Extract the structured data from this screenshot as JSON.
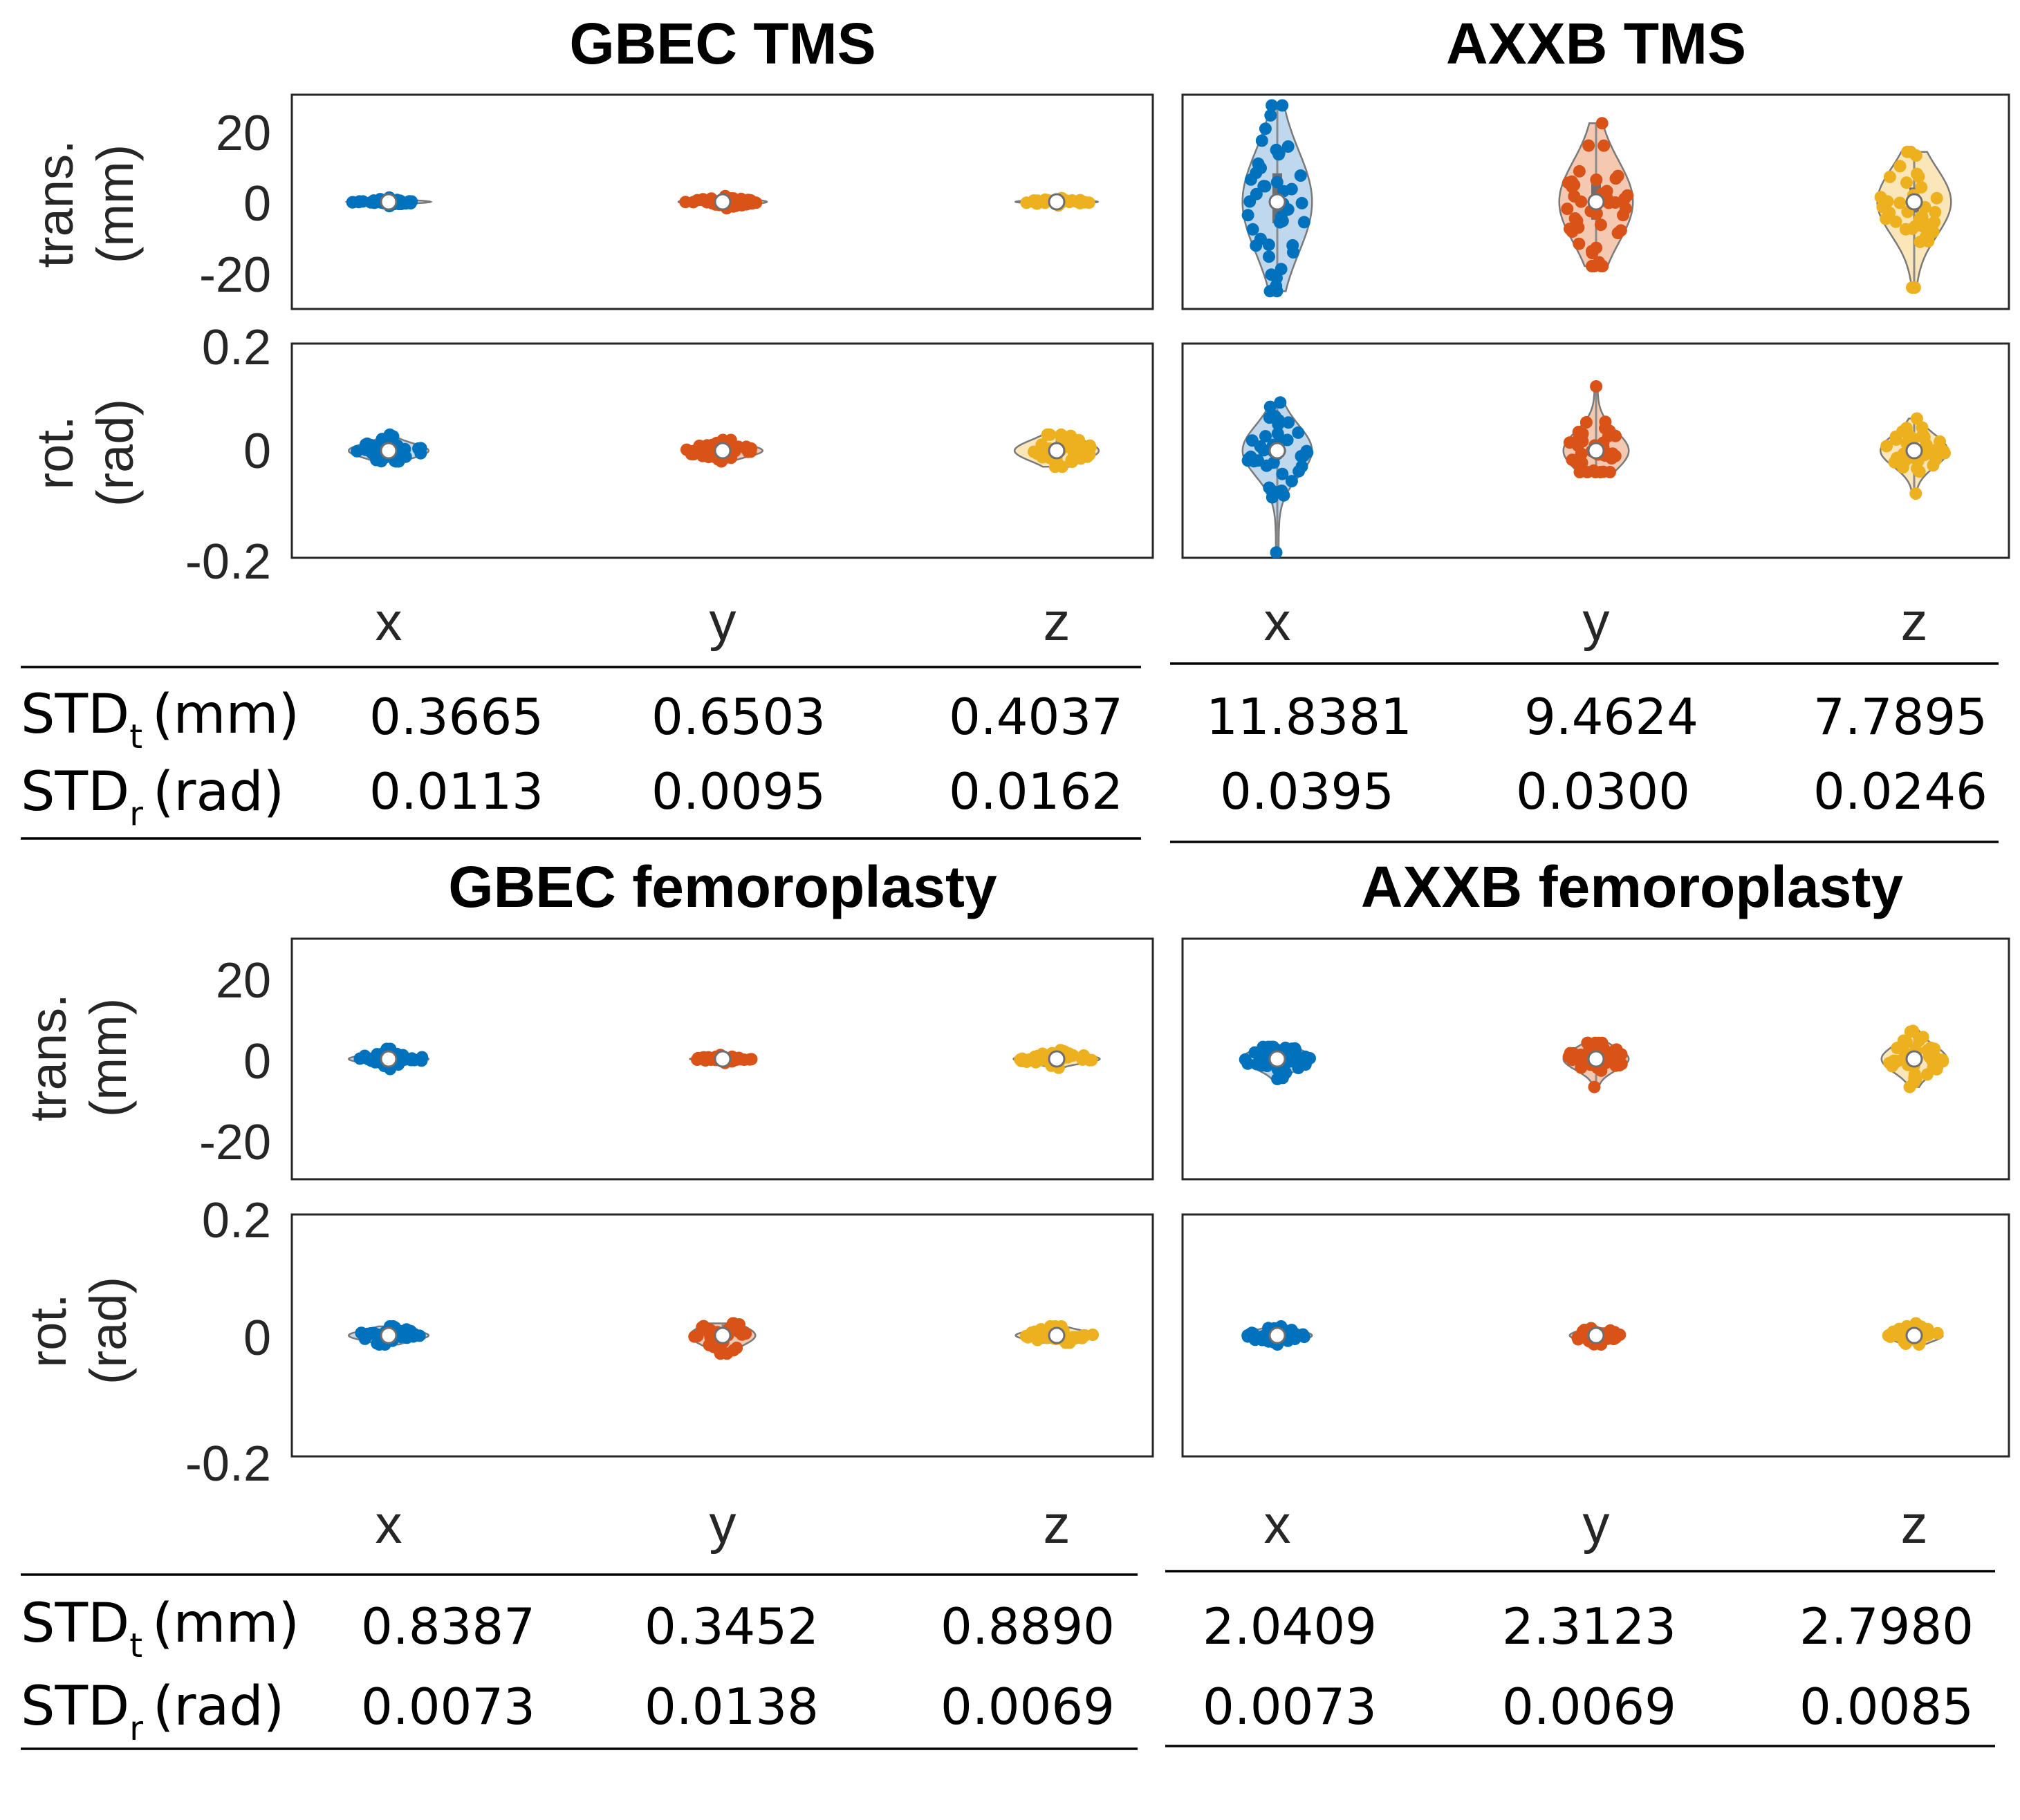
{
  "colors": {
    "x": "#0072BD",
    "y": "#D95319",
    "z": "#EDB120",
    "axis": "#262626"
  },
  "row_labels": {
    "trans": [
      "trans.",
      "(mm)"
    ],
    "rot": [
      "rot.",
      "(rad)"
    ]
  },
  "trans_ticks": [
    "20",
    "0",
    "-20"
  ],
  "rot_ticks": [
    "0.2",
    "0",
    "-0.2"
  ],
  "table_labels": {
    "std": "STD",
    "sub_t": "t",
    "sub_r": "r",
    "unit_t": "(mm)",
    "unit_r": "(rad)"
  },
  "panels": [
    {
      "title": "GBEC TMS",
      "categories": [
        "x",
        "y",
        "z"
      ],
      "std_t": [
        "0.3665",
        "0.6503",
        "0.4037"
      ],
      "std_r": [
        "0.0113",
        "0.0095",
        "0.0162"
      ]
    },
    {
      "title": "AXXB TMS",
      "categories": [
        "x",
        "y",
        "z"
      ],
      "std_t": [
        "11.8381",
        "9.4624",
        "7.7895"
      ],
      "std_r": [
        "0.0395",
        "0.0300",
        "0.0246"
      ]
    },
    {
      "title": "GBEC femoroplasty",
      "categories": [
        "x",
        "y",
        "z"
      ],
      "std_t": [
        "0.8387",
        "0.3452",
        "0.8890"
      ],
      "std_r": [
        "0.0073",
        "0.0138",
        "0.0069"
      ]
    },
    {
      "title": "AXXB femoroplasty",
      "categories": [
        "x",
        "y",
        "z"
      ],
      "std_t": [
        "2.0409",
        "2.3123",
        "2.7980"
      ],
      "std_r": [
        "0.0073",
        "0.0069",
        "0.0085"
      ]
    }
  ],
  "chart_data": [
    {
      "type": "violin",
      "title": "GBEC TMS",
      "ylabel": "trans. (mm)",
      "ylim": [
        -30,
        30
      ],
      "categories": [
        "x",
        "y",
        "z"
      ],
      "series": [
        {
          "name": "x",
          "median": 0,
          "q1": -0.3,
          "q3": 0.3,
          "min": -1.2,
          "max": 1.2,
          "halfwidth": 3.9,
          "n": 38,
          "spread": 0.37
        },
        {
          "name": "y",
          "median": 0,
          "q1": -0.4,
          "q3": 0.4,
          "min": -1.8,
          "max": 1.6,
          "halfwidth": 4.1,
          "n": 40,
          "spread": 0.65
        },
        {
          "name": "z",
          "median": 0,
          "q1": -0.3,
          "q3": 0.3,
          "min": -1.0,
          "max": 1.0,
          "halfwidth": 3.8,
          "n": 36,
          "spread": 0.4
        }
      ]
    },
    {
      "type": "violin",
      "title": "GBEC TMS",
      "ylabel": "rot. (rad)",
      "ylim": [
        -0.2,
        0.2
      ],
      "categories": [
        "x",
        "y",
        "z"
      ],
      "series": [
        {
          "name": "x",
          "median": 0,
          "q1": -0.005,
          "q3": 0.006,
          "min": -0.02,
          "max": 0.03,
          "halfwidth": 3.7,
          "n": 38,
          "spread": 0.0113
        },
        {
          "name": "y",
          "median": 0,
          "q1": -0.004,
          "q3": 0.005,
          "min": -0.02,
          "max": 0.02,
          "halfwidth": 3.7,
          "n": 40,
          "spread": 0.0095
        },
        {
          "name": "z",
          "median": 0,
          "q1": -0.008,
          "q3": 0.008,
          "min": -0.03,
          "max": 0.03,
          "halfwidth": 3.9,
          "n": 40,
          "spread": 0.0162
        }
      ]
    },
    {
      "type": "violin",
      "title": "AXXB TMS",
      "ylabel": "trans. (mm)",
      "ylim": [
        -30,
        30
      ],
      "categories": [
        "x",
        "y",
        "z"
      ],
      "series": [
        {
          "name": "x",
          "median": 0,
          "q1": -6,
          "q3": 8,
          "min": -25,
          "max": 27,
          "halfwidth": 3.2,
          "n": 42,
          "spread": 11.84
        },
        {
          "name": "y",
          "median": 0,
          "q1": -5,
          "q3": 5,
          "min": -18,
          "max": 22,
          "halfwidth": 3.4,
          "n": 42,
          "spread": 9.46
        },
        {
          "name": "z",
          "median": 0,
          "q1": -3,
          "q3": 4,
          "min": -24,
          "max": 14,
          "halfwidth": 3.4,
          "n": 36,
          "spread": 7.79
        }
      ]
    },
    {
      "type": "violin",
      "title": "AXXB TMS",
      "ylabel": "rot. (rad)",
      "ylim": [
        -0.2,
        0.2
      ],
      "categories": [
        "x",
        "y",
        "z"
      ],
      "series": [
        {
          "name": "x",
          "median": 0,
          "q1": -0.01,
          "q3": 0.012,
          "min": -0.19,
          "max": 0.09,
          "halfwidth": 3.2,
          "n": 42,
          "spread": 0.0395
        },
        {
          "name": "y",
          "median": 0,
          "q1": -0.008,
          "q3": 0.01,
          "min": -0.04,
          "max": 0.12,
          "halfwidth": 3.0,
          "n": 36,
          "spread": 0.03
        },
        {
          "name": "z",
          "median": 0,
          "q1": -0.008,
          "q3": 0.01,
          "min": -0.08,
          "max": 0.06,
          "halfwidth": 3.1,
          "n": 36,
          "spread": 0.0246
        }
      ]
    },
    {
      "type": "violin",
      "title": "GBEC femoroplasty",
      "ylabel": "trans. (mm)",
      "ylim": [
        -30,
        30
      ],
      "categories": [
        "x",
        "y",
        "z"
      ],
      "series": [
        {
          "name": "x",
          "median": 0,
          "q1": -0.6,
          "q3": 0.6,
          "min": -2.5,
          "max": 2.5,
          "halfwidth": 3.7,
          "n": 38,
          "spread": 0.84
        },
        {
          "name": "y",
          "median": 0,
          "q1": -0.3,
          "q3": 0.3,
          "min": -1.0,
          "max": 1.0,
          "halfwidth": 3.0,
          "n": 30,
          "spread": 0.35
        },
        {
          "name": "z",
          "median": 0,
          "q1": -0.6,
          "q3": 0.6,
          "min": -2.2,
          "max": 2.2,
          "halfwidth": 4.0,
          "n": 38,
          "spread": 0.89
        }
      ]
    },
    {
      "type": "violin",
      "title": "GBEC femoroplasty",
      "ylabel": "rot. (rad)",
      "ylim": [
        -0.2,
        0.2
      ],
      "categories": [
        "x",
        "y",
        "z"
      ],
      "series": [
        {
          "name": "x",
          "median": 0,
          "q1": -0.004,
          "q3": 0.004,
          "min": -0.015,
          "max": 0.015,
          "halfwidth": 3.7,
          "n": 40,
          "spread": 0.0073
        },
        {
          "name": "y",
          "median": 0,
          "q1": -0.008,
          "q3": 0.008,
          "min": -0.03,
          "max": 0.02,
          "halfwidth": 3.0,
          "n": 40,
          "spread": 0.0138
        },
        {
          "name": "z",
          "median": 0,
          "q1": -0.004,
          "q3": 0.004,
          "min": -0.012,
          "max": 0.015,
          "halfwidth": 3.8,
          "n": 38,
          "spread": 0.0069
        }
      ]
    },
    {
      "type": "violin",
      "title": "AXXB femoroplasty",
      "ylabel": "trans. (mm)",
      "ylim": [
        -30,
        30
      ],
      "categories": [
        "x",
        "y",
        "z"
      ],
      "series": [
        {
          "name": "x",
          "median": 0,
          "q1": -1.5,
          "q3": 1.5,
          "min": -5,
          "max": 3,
          "halfwidth": 3.3,
          "n": 42,
          "spread": 2.04
        },
        {
          "name": "y",
          "median": 0,
          "q1": -1.5,
          "q3": 1.5,
          "min": -7,
          "max": 4,
          "halfwidth": 3.0,
          "n": 42,
          "spread": 2.31
        },
        {
          "name": "z",
          "median": 0,
          "q1": -2,
          "q3": 2,
          "min": -7,
          "max": 7,
          "halfwidth": 3.0,
          "n": 40,
          "spread": 2.8
        }
      ]
    },
    {
      "type": "violin",
      "title": "AXXB femoroplasty",
      "ylabel": "rot. (rad)",
      "ylim": [
        -0.2,
        0.2
      ],
      "categories": [
        "x",
        "y",
        "z"
      ],
      "series": [
        {
          "name": "x",
          "median": 0,
          "q1": -0.004,
          "q3": 0.004,
          "min": -0.015,
          "max": 0.015,
          "halfwidth": 3.2,
          "n": 42,
          "spread": 0.0073
        },
        {
          "name": "y",
          "median": 0,
          "q1": -0.004,
          "q3": 0.004,
          "min": -0.015,
          "max": 0.012,
          "halfwidth": 2.4,
          "n": 30,
          "spread": 0.0069
        },
        {
          "name": "z",
          "median": 0,
          "q1": -0.004,
          "q3": 0.005,
          "min": -0.015,
          "max": 0.02,
          "halfwidth": 2.6,
          "n": 34,
          "spread": 0.0085
        }
      ]
    }
  ]
}
